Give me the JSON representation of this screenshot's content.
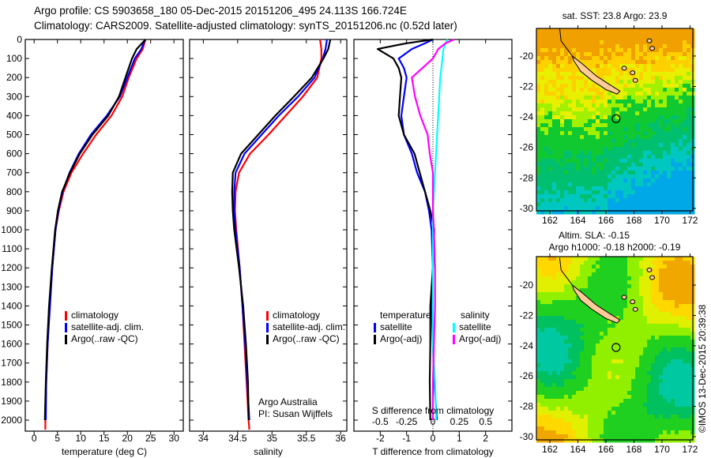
{
  "header": {
    "line1": "Argo profile: CS 5903658_180 05-Dec-2015 20151206_495 24.113S 166.724E",
    "line2": "Climatology: CARS2009. Satellite-adjusted climatology: synTS_20151206.nc (0.52d later)"
  },
  "colors": {
    "climatology": "#ff0000",
    "satellite": "#0000ff",
    "argo": "#000000",
    "sal_satellite": "#00ffff",
    "sal_argo": "#ff00ff",
    "land": "#ffcc99"
  },
  "depth_ticks": [
    "0",
    "100",
    "200",
    "300",
    "400",
    "500",
    "600",
    "700",
    "800",
    "900",
    "1000",
    "1100",
    "1200",
    "1300",
    "1400",
    "1500",
    "1600",
    "1700",
    "1800",
    "1900",
    "2000"
  ],
  "credits": {
    "line1": "Argo Australia",
    "line2": "PI: Susan Wijffels"
  },
  "timestamp": "©IMOS 13-Dec-2015 20:39:38",
  "chart_data": [
    {
      "type": "line",
      "id": "temperature",
      "xlabel": "temperature (deg C)",
      "ylabel": "depth",
      "xticks": [
        "0",
        "5",
        "10",
        "15",
        "20",
        "25",
        "30"
      ],
      "ylim": [
        0,
        2050
      ],
      "legend": [
        "climatology",
        "satellite-adj. clim.",
        "Argo(..raw -QC)"
      ],
      "legend_placement": "middle-left",
      "depth": [
        0,
        50,
        100,
        200,
        300,
        400,
        500,
        600,
        700,
        800,
        900,
        1000,
        1200,
        1400,
        1600,
        1800,
        2000,
        2050
      ],
      "series": [
        {
          "name": "climatology",
          "color": "#ff0000",
          "values": [
            23.9,
            23.3,
            22.0,
            20.3,
            18.9,
            16.6,
            13.3,
            10.5,
            8.0,
            6.3,
            5.3,
            4.6,
            3.9,
            3.3,
            2.9,
            2.6,
            2.4,
            2.4
          ]
        },
        {
          "name": "satellite-adj. clim.",
          "color": "#0000ff",
          "values": [
            23.8,
            23.0,
            21.6,
            20.0,
            18.4,
            15.6,
            12.2,
            9.6,
            7.6,
            6.1,
            5.2,
            4.6,
            3.9,
            3.4,
            2.9,
            2.6,
            2.5
          ]
        },
        {
          "name": "Argo(..raw -QC)",
          "color": "#000000",
          "values": [
            23.9,
            22.0,
            21.0,
            19.6,
            18.2,
            15.9,
            12.5,
            9.8,
            7.7,
            6.0,
            5.1,
            4.5,
            3.8,
            3.2,
            2.8,
            2.5,
            2.3
          ]
        }
      ]
    },
    {
      "type": "line",
      "id": "salinity",
      "xlabel": "salinity",
      "xticks": [
        "34",
        "34.5",
        "35",
        "35.5",
        "36"
      ],
      "legend": [
        "climatology",
        "satellite-adj. clim.",
        "Argo(..raw -QC)"
      ],
      "legend_placement": "middle-right",
      "depth": [
        0,
        50,
        100,
        200,
        300,
        400,
        500,
        600,
        700,
        800,
        900,
        1000,
        1200,
        1400,
        1600,
        1800,
        2000,
        2050
      ],
      "series": [
        {
          "name": "climatology",
          "color": "#ff0000",
          "values": [
            35.7,
            35.72,
            35.72,
            35.66,
            35.45,
            35.2,
            34.95,
            34.68,
            34.52,
            34.47,
            34.46,
            34.48,
            34.53,
            34.57,
            34.6,
            34.63,
            34.66,
            34.67
          ]
        },
        {
          "name": "satellite-adj. clim.",
          "color": "#0000ff",
          "values": [
            35.8,
            35.78,
            35.74,
            35.62,
            35.38,
            35.1,
            34.85,
            34.6,
            34.47,
            34.45,
            34.45,
            34.47,
            34.53,
            34.57,
            34.61,
            34.64,
            34.67
          ]
        },
        {
          "name": "Argo(..raw -QC)",
          "color": "#000000",
          "values": [
            35.85,
            35.82,
            35.75,
            35.58,
            35.32,
            35.05,
            34.8,
            34.55,
            34.43,
            34.42,
            34.43,
            34.45,
            34.52,
            34.58,
            34.62,
            34.65,
            34.66
          ]
        }
      ]
    },
    {
      "type": "line",
      "id": "difference",
      "xlabel": "T difference from climatology",
      "x2label": "S difference from climatology",
      "xticks": [
        "-2",
        "-1",
        "0",
        "1",
        "2"
      ],
      "x2ticks": [
        "-0.5",
        "-0.25",
        "0",
        "0.25",
        "0.5"
      ],
      "legend_temperature": {
        "title": "temperature",
        "items": [
          "satellite",
          "Argo(-adj)"
        ]
      },
      "legend_salinity": {
        "title": "salinity",
        "items": [
          "satellite",
          "Argo(-adj)"
        ]
      },
      "depth": [
        0,
        20,
        50,
        100,
        150,
        200,
        300,
        400,
        500,
        600,
        700,
        800,
        900,
        1000,
        1200,
        1400,
        1600,
        1800,
        2000
      ],
      "series": [
        {
          "name": "temperature satellite",
          "color": "#0000ff",
          "units": "T",
          "values": [
            0.0,
            -0.3,
            -0.8,
            -1.3,
            -1.1,
            -1.0,
            -1.1,
            -1.2,
            -1.1,
            -0.8,
            -0.6,
            -0.3,
            -0.15,
            -0.05,
            0.0,
            -0.05,
            0.0,
            0.05,
            0.15
          ]
        },
        {
          "name": "temperature Argo(-adj)",
          "color": "#000000",
          "units": "T",
          "values": [
            0.0,
            -1.0,
            -2.1,
            -1.5,
            -1.3,
            -1.2,
            -1.25,
            -1.3,
            -1.1,
            -0.7,
            -0.5,
            -0.3,
            -0.1,
            0.05,
            0.0,
            -0.1,
            -0.1,
            -0.12,
            -0.1
          ]
        },
        {
          "name": "salinity satellite",
          "color": "#00ffff",
          "units": "S",
          "values": [
            0.14,
            0.12,
            0.1,
            0.09,
            0.08,
            0.07,
            0.06,
            0.05,
            0.04,
            0.03,
            0.02,
            0.01,
            0.0,
            0.0,
            0.0,
            0.0,
            0.0,
            0.02,
            0.03
          ]
        },
        {
          "name": "salinity Argo(-adj)",
          "color": "#ff00ff",
          "units": "S",
          "values": [
            0.2,
            0.12,
            0.05,
            0.0,
            -0.1,
            -0.2,
            -0.17,
            -0.12,
            -0.05,
            -0.03,
            0.0,
            0.0,
            0.0,
            0.01,
            0.02,
            0.02,
            0.01,
            0.0,
            0.0
          ]
        }
      ]
    },
    {
      "type": "heatmap",
      "id": "sst-map",
      "title": "sat. SST: 23.8 Argo: 23.9",
      "xticks": [
        "162",
        "164",
        "166",
        "168",
        "170",
        "172"
      ],
      "yticks": [
        "-20",
        "-22",
        "-24",
        "-26",
        "-28",
        "-30"
      ],
      "argo_position": {
        "lon": 166.724,
        "lat": -24.113
      }
    },
    {
      "type": "heatmap",
      "id": "sla-map",
      "title": "Altim. SLA: -0.15",
      "subtitle": "Argo h1000: -0.18 h2000: -0.19",
      "xticks": [
        "162",
        "164",
        "166",
        "168",
        "170",
        "172"
      ],
      "yticks": [
        "-20",
        "-22",
        "-24",
        "-26",
        "-28",
        "-30"
      ],
      "argo_position": {
        "lon": 166.724,
        "lat": -24.113
      }
    }
  ]
}
